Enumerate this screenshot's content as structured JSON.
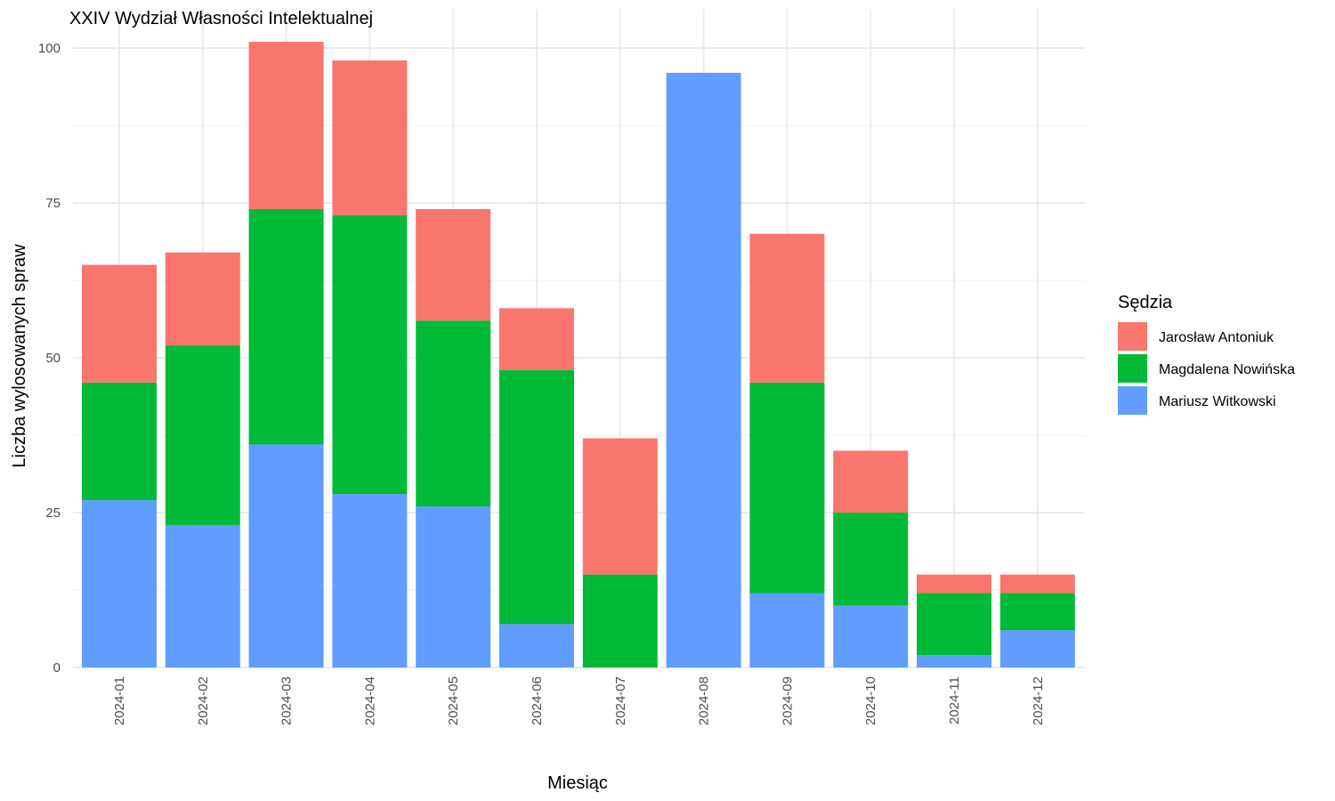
{
  "chart_data": {
    "type": "bar",
    "stacked": true,
    "title": "XXIV Wydział Własności Intelektualnej",
    "xlabel": "Miesiąc",
    "ylabel": "Liczba wylosowanych spraw",
    "ylim": [
      0,
      104
    ],
    "yticks": [
      "0",
      "25",
      "50",
      "75",
      "100"
    ],
    "grid": true,
    "legend_position": "right",
    "legend_title": "Sędzia",
    "categories": [
      "2024-01",
      "2024-02",
      "2024-03",
      "2024-04",
      "2024-05",
      "2024-06",
      "2024-07",
      "2024-08",
      "2024-09",
      "2024-10",
      "2024-11",
      "2024-12"
    ],
    "series": [
      {
        "name": "Mariusz Witkowski",
        "color": "#619CFF",
        "values": [
          27,
          23,
          36,
          28,
          26,
          7,
          0,
          96,
          12,
          10,
          2,
          6
        ]
      },
      {
        "name": "Magdalena Nowińska",
        "color": "#00BA38",
        "values": [
          19,
          29,
          38,
          45,
          30,
          41,
          15,
          0,
          34,
          15,
          10,
          6
        ]
      },
      {
        "name": "Jarosław Antoniuk",
        "color": "#F8766D",
        "values": [
          19,
          15,
          27,
          25,
          18,
          10,
          22,
          0,
          24,
          10,
          3,
          3
        ]
      }
    ],
    "legend_order": [
      "Jarosław Antoniuk",
      "Magdalena Nowińska",
      "Mariusz Witkowski"
    ]
  }
}
